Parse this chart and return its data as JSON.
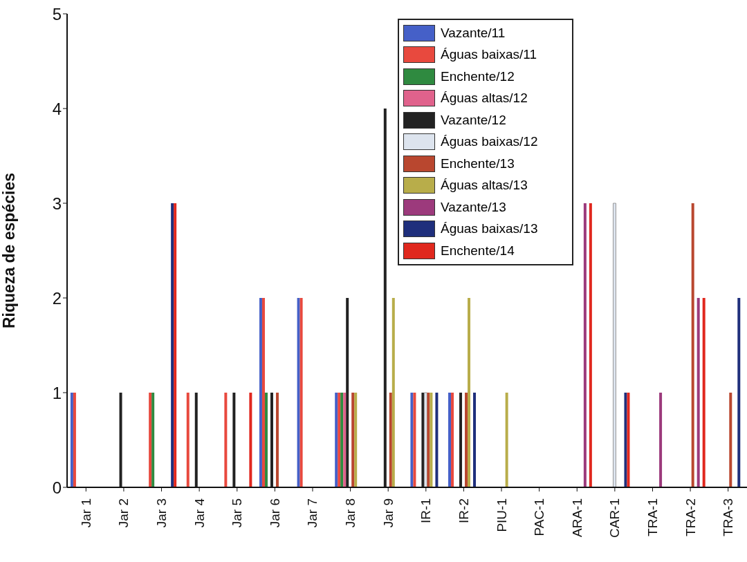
{
  "chart_data": {
    "type": "bar",
    "ylabel": "Riqueza de espécies",
    "categories": [
      "Jar 1",
      "Jar 2",
      "Jar 3",
      "Jar 4",
      "Jar 5",
      "Jar 6",
      "Jar 7",
      "Jar 8",
      "Jar 9",
      "IR-1",
      "IR-2",
      "PIU-1",
      "PAC-1",
      "ARA-1",
      "CAR-1",
      "TRA-1",
      "TRA-2",
      "TRA-3"
    ],
    "ylim": [
      0,
      5
    ],
    "yticks": [
      0,
      1,
      2,
      3,
      4,
      5
    ],
    "grid": false,
    "legend": "top right",
    "series": [
      {
        "name": "Vazante/11",
        "color": "#4560c8",
        "values": [
          1,
          null,
          null,
          null,
          null,
          2,
          2,
          1,
          null,
          1,
          1,
          null,
          null,
          null,
          null,
          null,
          null,
          null
        ]
      },
      {
        "name": "Águas baixas/11",
        "color": "#e8493e",
        "values": [
          1,
          null,
          1,
          1,
          1,
          2,
          2,
          1,
          null,
          1,
          1,
          null,
          null,
          null,
          null,
          null,
          null,
          null
        ]
      },
      {
        "name": "Enchente/12",
        "color": "#2f8a40",
        "values": [
          null,
          null,
          1,
          null,
          null,
          1,
          null,
          1,
          null,
          null,
          null,
          null,
          null,
          null,
          null,
          null,
          null,
          null
        ]
      },
      {
        "name": "Águas altas/12",
        "color": "#e0628c",
        "values": [
          null,
          null,
          null,
          null,
          null,
          null,
          null,
          1,
          null,
          null,
          null,
          null,
          null,
          null,
          null,
          null,
          null,
          null
        ]
      },
      {
        "name": "Vazante/12",
        "color": "#222222",
        "values": [
          null,
          1,
          null,
          1,
          1,
          1,
          null,
          2,
          4,
          1,
          1,
          null,
          null,
          null,
          null,
          null,
          null,
          null
        ]
      },
      {
        "name": "Águas baixas/12",
        "color": "#dde4ee",
        "values": [
          null,
          null,
          null,
          null,
          null,
          null,
          null,
          null,
          null,
          1,
          null,
          null,
          null,
          null,
          3,
          null,
          null,
          null
        ]
      },
      {
        "name": "Enchente/13",
        "color": "#b9472f",
        "values": [
          null,
          null,
          null,
          null,
          null,
          1,
          null,
          1,
          1,
          1,
          1,
          null,
          null,
          null,
          null,
          null,
          3,
          1
        ]
      },
      {
        "name": "Águas altas/13",
        "color": "#b8ad4a",
        "values": [
          null,
          null,
          null,
          null,
          null,
          null,
          null,
          1,
          2,
          1,
          2,
          1,
          null,
          null,
          null,
          null,
          null,
          null
        ]
      },
      {
        "name": "Vazante/13",
        "color": "#9c3a7c",
        "values": [
          null,
          null,
          null,
          null,
          null,
          null,
          null,
          null,
          null,
          null,
          null,
          null,
          null,
          3,
          null,
          1,
          2,
          null
        ]
      },
      {
        "name": "Águas baixas/13",
        "color": "#1f2f7c",
        "values": [
          null,
          null,
          3,
          null,
          null,
          null,
          null,
          null,
          null,
          1,
          1,
          null,
          null,
          null,
          1,
          null,
          null,
          2
        ]
      },
      {
        "name": "Enchente/14",
        "color": "#e0281e",
        "values": [
          null,
          null,
          3,
          null,
          1,
          null,
          null,
          null,
          null,
          null,
          null,
          null,
          null,
          3,
          1,
          null,
          2,
          null
        ]
      }
    ]
  }
}
